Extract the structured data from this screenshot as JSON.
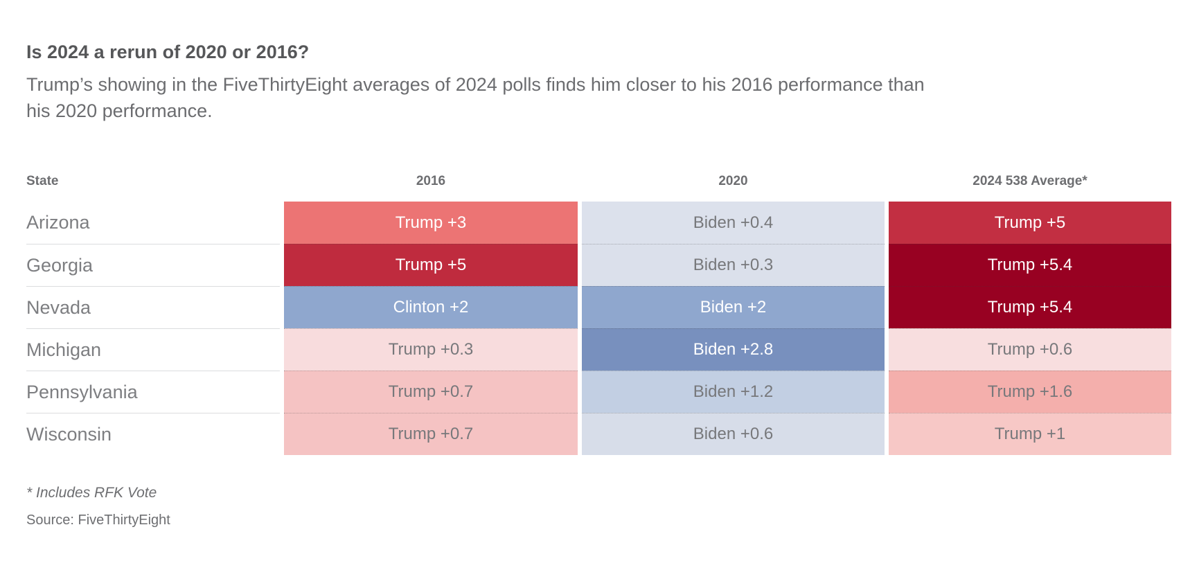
{
  "header": {
    "title": "Is 2024 a rerun of 2020 or 2016?",
    "subtitle_lines": [
      "Trump’s showing in the FiveThirtyEight averages of 2024 polls finds him closer to his 2016 performance than",
      "his 2020 performance."
    ]
  },
  "footer": {
    "footnote": "* Includes RFK Vote",
    "source": "Source: FiveThirtyEight"
  },
  "colors": {
    "title_text": "#565759",
    "body_text": "#6b6c6f",
    "header_text": "#6d6e71",
    "state_text": "#7d7e81",
    "light_cell_text": "#77787b",
    "dark_cell_text": "#ffffff",
    "row_separator": "#dbdcde"
  },
  "chart_data": {
    "type": "table",
    "title": "Is 2024 a rerun of 2020 or 2016?",
    "columns": [
      "State",
      "2016",
      "2020",
      "2024 538 Average*"
    ],
    "rows": [
      {
        "state": "Arizona",
        "cells": [
          {
            "label": "Trump +3",
            "candidate": "Trump",
            "margin": 3,
            "bg": "#ec7474",
            "fg": "#ffffff"
          },
          {
            "label": "Biden +0.4",
            "candidate": "Biden",
            "margin": 0.4,
            "bg": "#dce1ec",
            "fg": "#77787b"
          },
          {
            "label": "Trump +5",
            "candidate": "Trump",
            "margin": 5,
            "bg": "#c22f42",
            "fg": "#ffffff"
          }
        ]
      },
      {
        "state": "Georgia",
        "cells": [
          {
            "label": "Trump +5",
            "candidate": "Trump",
            "margin": 5,
            "bg": "#bf2b3e",
            "fg": "#ffffff"
          },
          {
            "label": "Biden +0.3",
            "candidate": "Biden",
            "margin": 0.3,
            "bg": "#dbe0eb",
            "fg": "#77787b"
          },
          {
            "label": "Trump +5.4",
            "candidate": "Trump",
            "margin": 5.4,
            "bg": "#980122",
            "fg": "#ffffff"
          }
        ]
      },
      {
        "state": "Nevada",
        "cells": [
          {
            "label": "Clinton +2",
            "candidate": "Clinton",
            "margin": 2,
            "bg": "#8fa7ce",
            "fg": "#ffffff"
          },
          {
            "label": "Biden +2",
            "candidate": "Biden",
            "margin": 2,
            "bg": "#8fa7ce",
            "fg": "#ffffff"
          },
          {
            "label": "Trump +5.4",
            "candidate": "Trump",
            "margin": 5.4,
            "bg": "#980122",
            "fg": "#ffffff"
          }
        ]
      },
      {
        "state": "Michigan",
        "cells": [
          {
            "label": "Trump +0.3",
            "candidate": "Trump",
            "margin": 0.3,
            "bg": "#f8dcdd",
            "fg": "#77787b"
          },
          {
            "label": "Biden +2.8",
            "candidate": "Biden",
            "margin": 2.8,
            "bg": "#7890be",
            "fg": "#ffffff"
          },
          {
            "label": "Trump +0.6",
            "candidate": "Trump",
            "margin": 0.6,
            "bg": "#f8dedf",
            "fg": "#77787b"
          }
        ]
      },
      {
        "state": "Pennsylvania",
        "cells": [
          {
            "label": "Trump +0.7",
            "candidate": "Trump",
            "margin": 0.7,
            "bg": "#f5c3c3",
            "fg": "#77787b"
          },
          {
            "label": "Biden +1.2",
            "candidate": "Biden",
            "margin": 1.2,
            "bg": "#c2cfe3",
            "fg": "#77787b"
          },
          {
            "label": "Trump +1.6",
            "candidate": "Trump",
            "margin": 1.6,
            "bg": "#f4afac",
            "fg": "#77787b"
          }
        ]
      },
      {
        "state": "Wisconsin",
        "cells": [
          {
            "label": "Trump +0.7",
            "candidate": "Trump",
            "margin": 0.7,
            "bg": "#f5c3c3",
            "fg": "#77787b"
          },
          {
            "label": "Biden +0.6",
            "candidate": "Biden",
            "margin": 0.6,
            "bg": "#d7dde9",
            "fg": "#77787b"
          },
          {
            "label": "Trump +1",
            "candidate": "Trump",
            "margin": 1,
            "bg": "#f7c8c6",
            "fg": "#77787b"
          }
        ]
      }
    ]
  }
}
